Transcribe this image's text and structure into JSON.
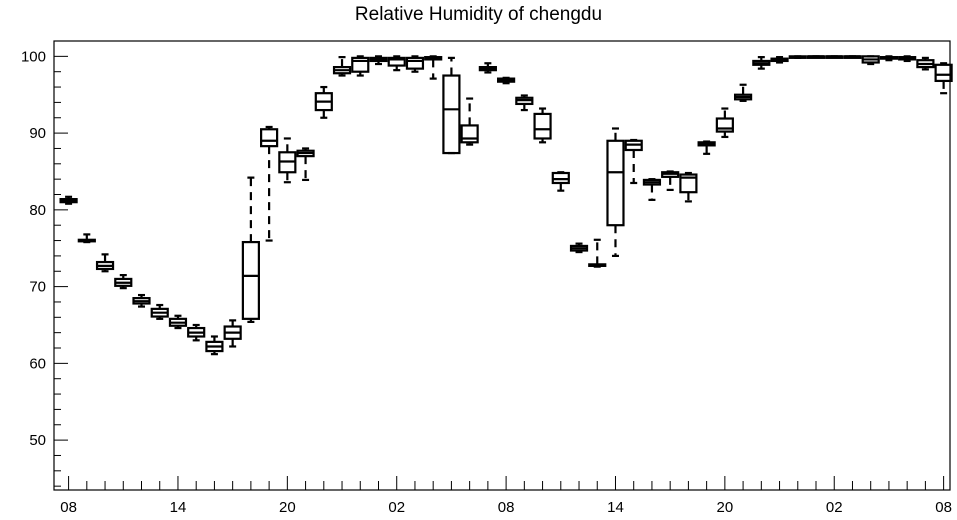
{
  "chart_data": {
    "type": "box",
    "title": "Relative Humidity of chengdu",
    "xlabel": "",
    "ylabel": "",
    "ylim": [
      43.5,
      102
    ],
    "y_ticks": [
      50,
      60,
      70,
      80,
      90,
      100
    ],
    "x_ticks": [
      "08",
      "14",
      "20",
      "02",
      "08",
      "14",
      "20",
      "02",
      "08"
    ],
    "x_tick_hours": [
      0,
      6,
      12,
      18,
      24,
      30,
      36,
      42,
      48
    ],
    "grid": false,
    "legend": "none",
    "series": [
      {
        "hour": 0,
        "min": 80.8,
        "q1": 81.0,
        "median": 81.2,
        "q3": 81.4,
        "max": 81.7
      },
      {
        "hour": 1,
        "min": 75.8,
        "q1": 75.9,
        "median": 76.0,
        "q3": 76.1,
        "max": 76.8
      },
      {
        "hour": 2,
        "min": 72.0,
        "q1": 72.3,
        "median": 72.7,
        "q3": 73.2,
        "max": 74.2
      },
      {
        "hour": 3,
        "min": 69.8,
        "q1": 70.1,
        "median": 70.5,
        "q3": 71.0,
        "max": 71.5
      },
      {
        "hour": 4,
        "min": 67.4,
        "q1": 67.8,
        "median": 68.1,
        "q3": 68.5,
        "max": 68.9
      },
      {
        "hour": 5,
        "min": 65.8,
        "q1": 66.1,
        "median": 66.6,
        "q3": 67.1,
        "max": 67.6
      },
      {
        "hour": 6,
        "min": 64.6,
        "q1": 64.9,
        "median": 65.3,
        "q3": 65.8,
        "max": 66.2
      },
      {
        "hour": 7,
        "min": 63.0,
        "q1": 63.5,
        "median": 64.0,
        "q3": 64.6,
        "max": 65.0
      },
      {
        "hour": 8,
        "min": 61.2,
        "q1": 61.6,
        "median": 62.2,
        "q3": 62.8,
        "max": 63.5
      },
      {
        "hour": 9,
        "min": 62.2,
        "q1": 63.2,
        "median": 64.0,
        "q3": 64.8,
        "max": 65.6
      },
      {
        "hour": 10,
        "min": 65.4,
        "q1": 65.8,
        "median": 71.4,
        "q3": 75.8,
        "max": 84.2
      },
      {
        "hour": 11,
        "min": 76.0,
        "q1": 88.3,
        "median": 89.0,
        "q3": 90.5,
        "max": 90.8
      },
      {
        "hour": 12,
        "min": 83.6,
        "q1": 84.9,
        "median": 86.3,
        "q3": 87.5,
        "max": 89.3
      },
      {
        "hour": 13,
        "min": 83.9,
        "q1": 87.0,
        "median": 87.4,
        "q3": 87.7,
        "max": 88.0
      },
      {
        "hour": 14,
        "min": 92.0,
        "q1": 93.0,
        "median": 94.1,
        "q3": 95.2,
        "max": 96.0
      },
      {
        "hour": 15,
        "min": 97.5,
        "q1": 97.8,
        "median": 98.2,
        "q3": 98.6,
        "max": 99.9
      },
      {
        "hour": 16,
        "min": 97.5,
        "q1": 98.0,
        "median": 99.4,
        "q3": 99.8,
        "max": 100.0
      },
      {
        "hour": 17,
        "min": 99.0,
        "q1": 99.4,
        "median": 99.6,
        "q3": 99.8,
        "max": 100.0
      },
      {
        "hour": 18,
        "min": 98.2,
        "q1": 98.8,
        "median": 99.6,
        "q3": 99.8,
        "max": 100.0
      },
      {
        "hour": 19,
        "min": 98.0,
        "q1": 98.4,
        "median": 99.4,
        "q3": 99.8,
        "max": 100.0
      },
      {
        "hour": 20,
        "min": 97.1,
        "q1": 99.6,
        "median": 99.8,
        "q3": 99.9,
        "max": 100.0
      },
      {
        "hour": 21,
        "min": 87.4,
        "q1": 87.4,
        "median": 93.1,
        "q3": 97.5,
        "max": 99.8
      },
      {
        "hour": 22,
        "min": 88.5,
        "q1": 88.8,
        "median": 89.3,
        "q3": 91.0,
        "max": 94.5
      },
      {
        "hour": 23,
        "min": 97.9,
        "q1": 98.2,
        "median": 98.4,
        "q3": 98.6,
        "max": 99.1
      },
      {
        "hour": 24,
        "min": 96.5,
        "q1": 96.7,
        "median": 96.9,
        "q3": 97.1,
        "max": 97.2
      },
      {
        "hour": 25,
        "min": 93.0,
        "q1": 93.8,
        "median": 94.3,
        "q3": 94.6,
        "max": 94.9
      },
      {
        "hour": 26,
        "min": 88.8,
        "q1": 89.3,
        "median": 90.5,
        "q3": 92.5,
        "max": 93.2
      },
      {
        "hour": 27,
        "min": 82.5,
        "q1": 83.5,
        "median": 84.0,
        "q3": 84.8,
        "max": 84.9
      },
      {
        "hour": 28,
        "min": 74.5,
        "q1": 74.7,
        "median": 75.0,
        "q3": 75.3,
        "max": 75.6
      },
      {
        "hour": 29,
        "min": 72.6,
        "q1": 72.7,
        "median": 72.8,
        "q3": 72.9,
        "max": 76.1
      },
      {
        "hour": 30,
        "min": 74.0,
        "q1": 78.0,
        "median": 84.9,
        "q3": 89.0,
        "max": 90.6
      },
      {
        "hour": 31,
        "min": 83.5,
        "q1": 87.8,
        "median": 88.5,
        "q3": 89.0,
        "max": 89.1
      },
      {
        "hour": 32,
        "min": 81.3,
        "q1": 83.3,
        "median": 83.6,
        "q3": 83.9,
        "max": 84.0
      },
      {
        "hour": 33,
        "min": 82.6,
        "q1": 84.3,
        "median": 84.7,
        "q3": 84.9,
        "max": 85.0
      },
      {
        "hour": 34,
        "min": 81.1,
        "q1": 82.3,
        "median": 84.2,
        "q3": 84.6,
        "max": 84.8
      },
      {
        "hour": 35,
        "min": 87.3,
        "q1": 88.4,
        "median": 88.6,
        "q3": 88.8,
        "max": 88.9
      },
      {
        "hour": 36,
        "min": 89.5,
        "q1": 90.2,
        "median": 90.6,
        "q3": 91.9,
        "max": 93.2
      },
      {
        "hour": 37,
        "min": 94.2,
        "q1": 94.4,
        "median": 94.7,
        "q3": 95.0,
        "max": 96.3
      },
      {
        "hour": 38,
        "min": 98.4,
        "q1": 98.9,
        "median": 99.1,
        "q3": 99.4,
        "max": 99.9
      },
      {
        "hour": 39,
        "min": 99.2,
        "q1": 99.4,
        "median": 99.5,
        "q3": 99.7,
        "max": 99.9
      },
      {
        "hour": 40,
        "min": 99.8,
        "q1": 99.9,
        "median": 99.95,
        "q3": 100.0,
        "max": 100.0
      },
      {
        "hour": 41,
        "min": 99.9,
        "q1": 99.95,
        "median": 100.0,
        "q3": 100.0,
        "max": 100.0
      },
      {
        "hour": 42,
        "min": 99.9,
        "q1": 99.95,
        "median": 100.0,
        "q3": 100.0,
        "max": 100.0
      },
      {
        "hour": 43,
        "min": 99.9,
        "q1": 99.95,
        "median": 100.0,
        "q3": 100.0,
        "max": 100.0
      },
      {
        "hour": 44,
        "min": 99.0,
        "q1": 99.2,
        "median": 99.6,
        "q3": 100.0,
        "max": 100.0
      },
      {
        "hour": 45,
        "min": 99.5,
        "q1": 99.7,
        "median": 99.8,
        "q3": 99.9,
        "max": 100.0
      },
      {
        "hour": 46,
        "min": 99.4,
        "q1": 99.6,
        "median": 99.8,
        "q3": 99.9,
        "max": 100.0
      },
      {
        "hour": 47,
        "min": 98.3,
        "q1": 98.6,
        "median": 99.0,
        "q3": 99.5,
        "max": 99.8
      },
      {
        "hour": 48,
        "min": 95.2,
        "q1": 96.8,
        "median": 97.6,
        "q3": 98.9,
        "max": 99.1
      }
    ]
  }
}
